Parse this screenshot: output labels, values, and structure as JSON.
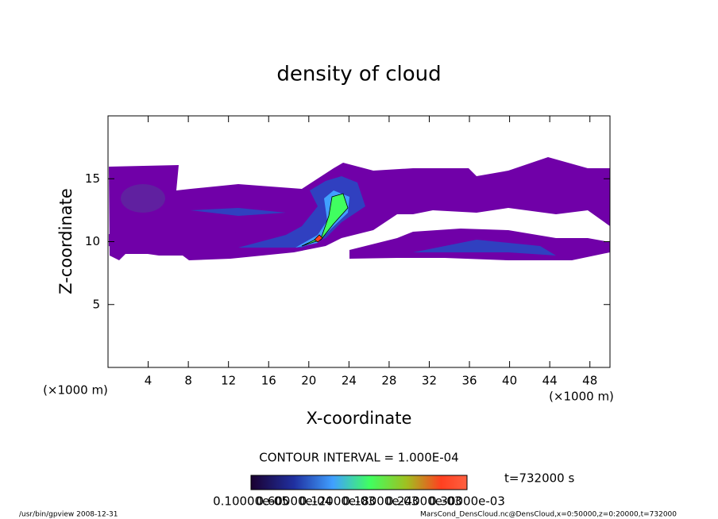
{
  "chart_data": {
    "type": "contour",
    "title": "density of cloud",
    "x_label": "X-coordinate",
    "y_label": "Z-coordinate",
    "x_unit": "(×1000 m)",
    "y_unit": "(×1000 m)",
    "xlim": [
      0,
      50
    ],
    "xticks": [
      4,
      8,
      12,
      16,
      20,
      24,
      28,
      32,
      36,
      40,
      44,
      48
    ],
    "ylim": [
      0,
      20
    ],
    "yticks": [
      5,
      10,
      15
    ],
    "contour_interval": "CONTOUR INTERVAL = 1.000E-04",
    "time_label": "t=732000 s",
    "colorbar_labels": [
      "0.10000e-05",
      "0.60000e-04",
      "0.12000e-03",
      "0.18000e-03",
      "0.24000e-03",
      "0.30000e-03"
    ],
    "footer_left": "/usr/bin/gpview   2008-12-31",
    "footer_right": "MarsCond_DensCloud.nc@DensCloud,x=0:50000,z=0:20000,t=732000"
  }
}
